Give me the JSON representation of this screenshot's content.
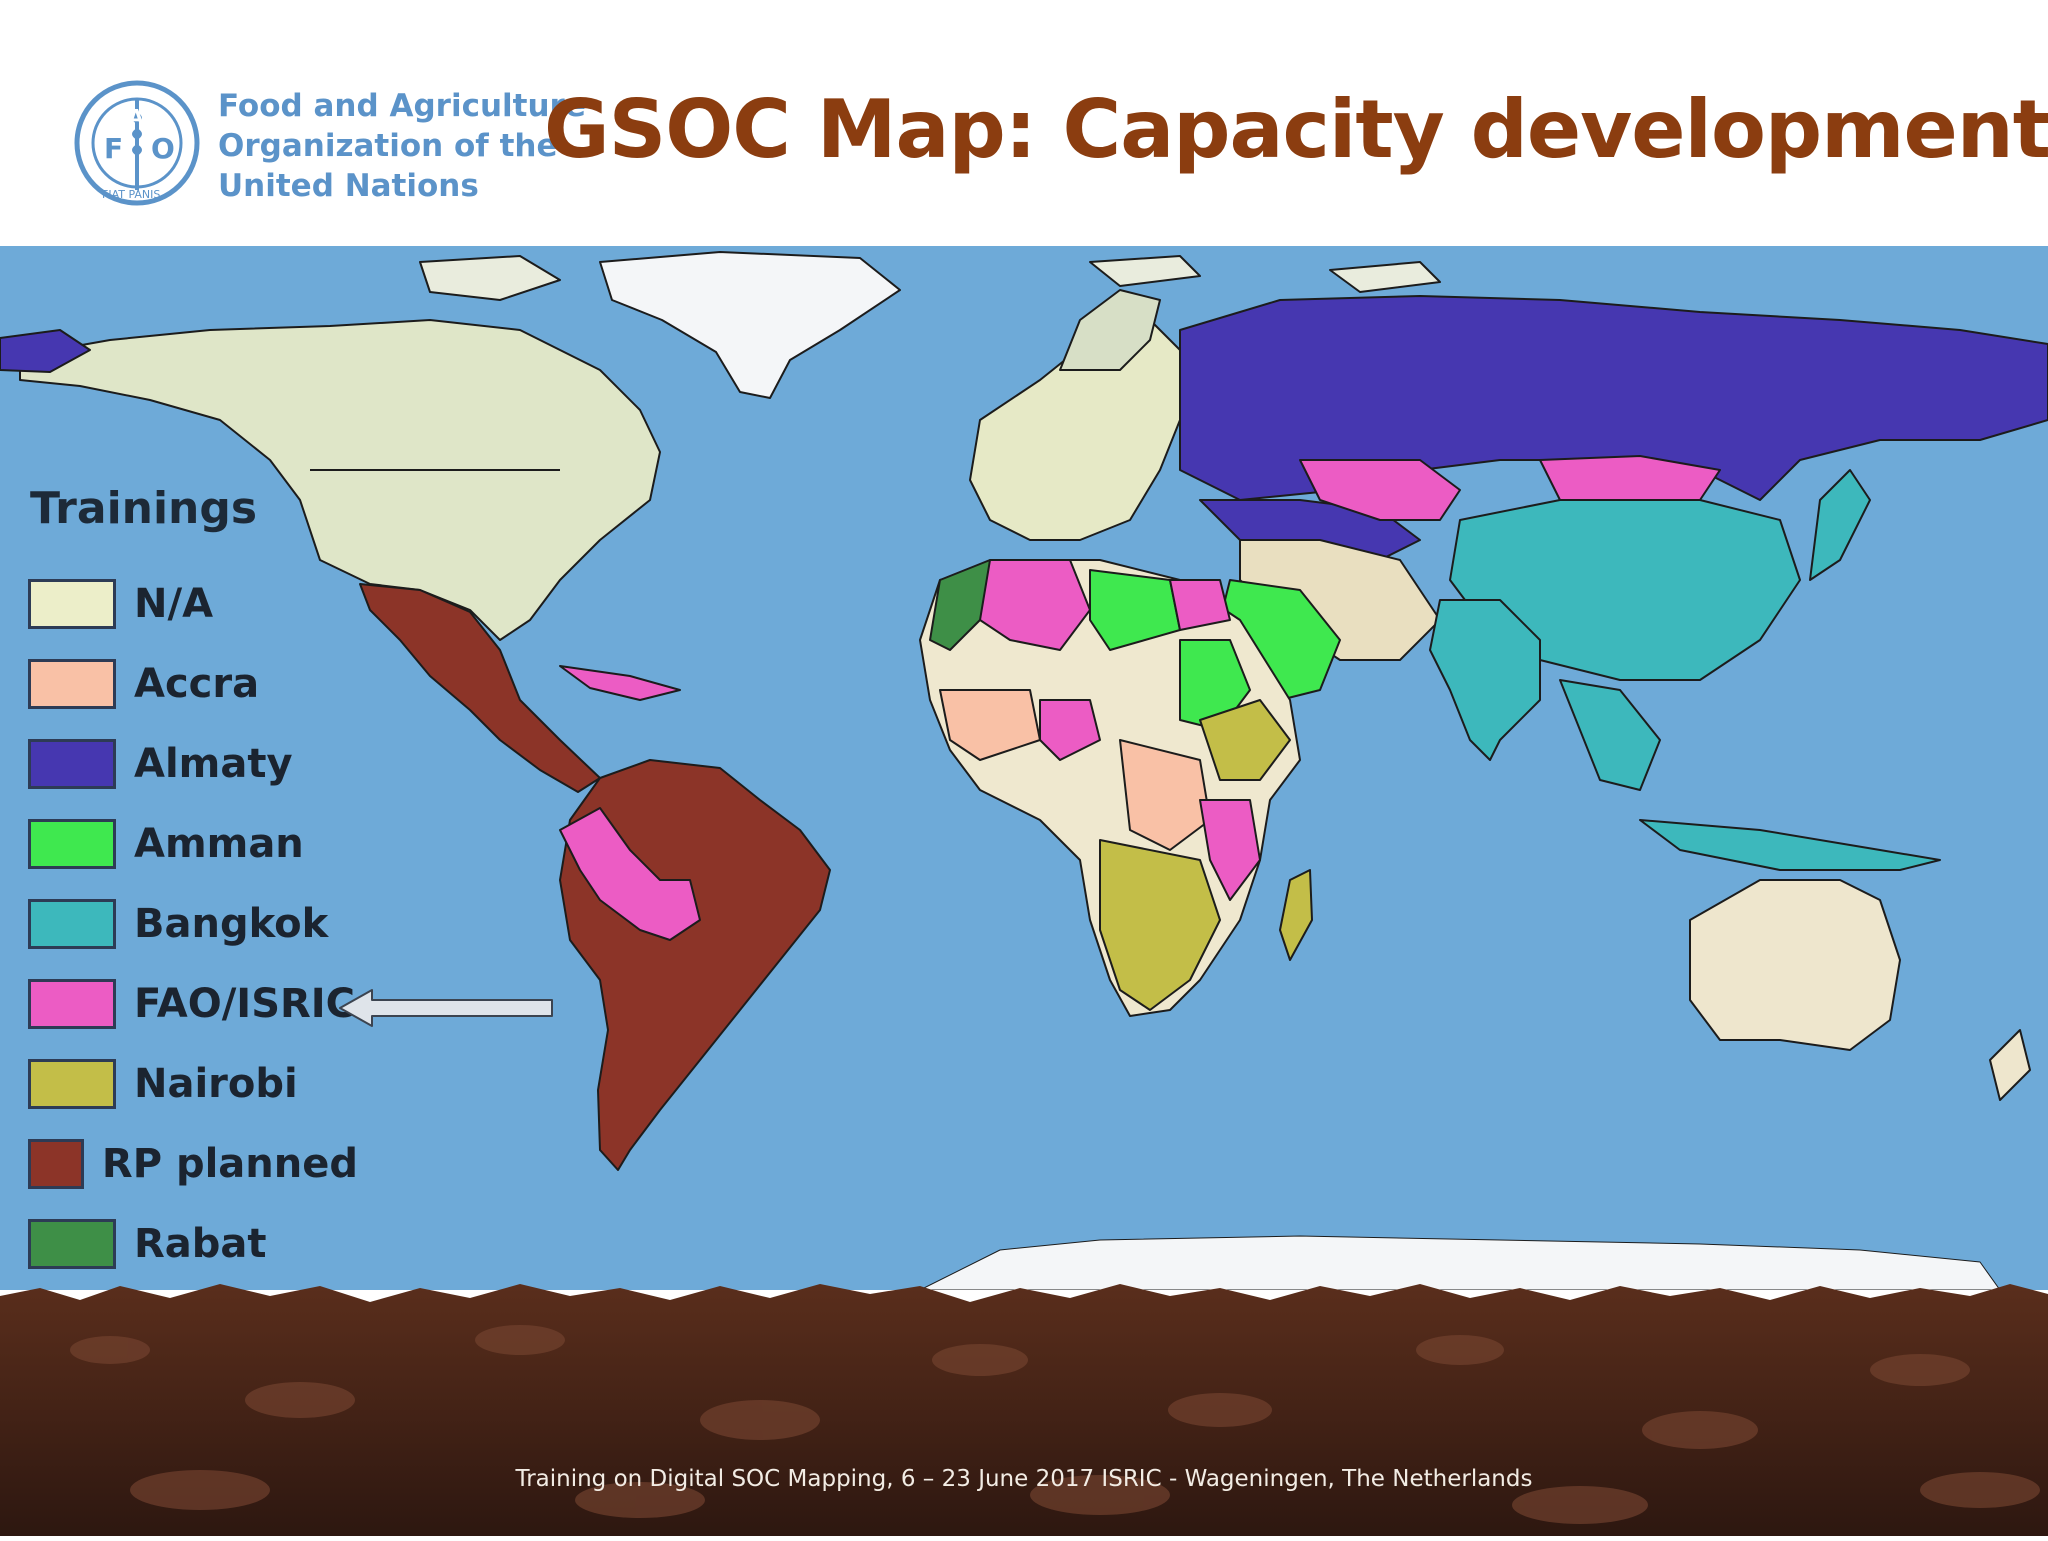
{
  "header": {
    "title": "GSOC Map: Capacity development",
    "org_lines": [
      "Food and Agriculture",
      "Organization of the",
      "United Nations"
    ],
    "emblem_letters": [
      "F",
      "A",
      "O"
    ],
    "emblem_ring": "FIAT PANIS"
  },
  "legend": {
    "title": "Trainings",
    "items": [
      {
        "label": "N/A",
        "color": "#eceec9"
      },
      {
        "label": "Accra",
        "color": "#f9c1a6"
      },
      {
        "label": "Almaty",
        "color": "#4637b0"
      },
      {
        "label": "Amman",
        "color": "#3fe84f"
      },
      {
        "label": "Bangkok",
        "color": "#3db8bc"
      },
      {
        "label": "FAO/ISRIC",
        "color": "#ec5cc4"
      },
      {
        "label": "Nairobi",
        "color": "#c3be48"
      },
      {
        "label": "RP planned",
        "color": "#8c3428"
      },
      {
        "label": "Rabat",
        "color": "#3e8f47"
      }
    ],
    "highlighted_item": "FAO/ISRIC"
  },
  "map": {
    "ocean_color": "#6eaad8",
    "ice_color": "#f4f6f8"
  },
  "footer": {
    "text": "Training on Digital SOC Mapping, 6 – 23 June 2017 ISRIC - Wageningen, The Netherlands"
  }
}
